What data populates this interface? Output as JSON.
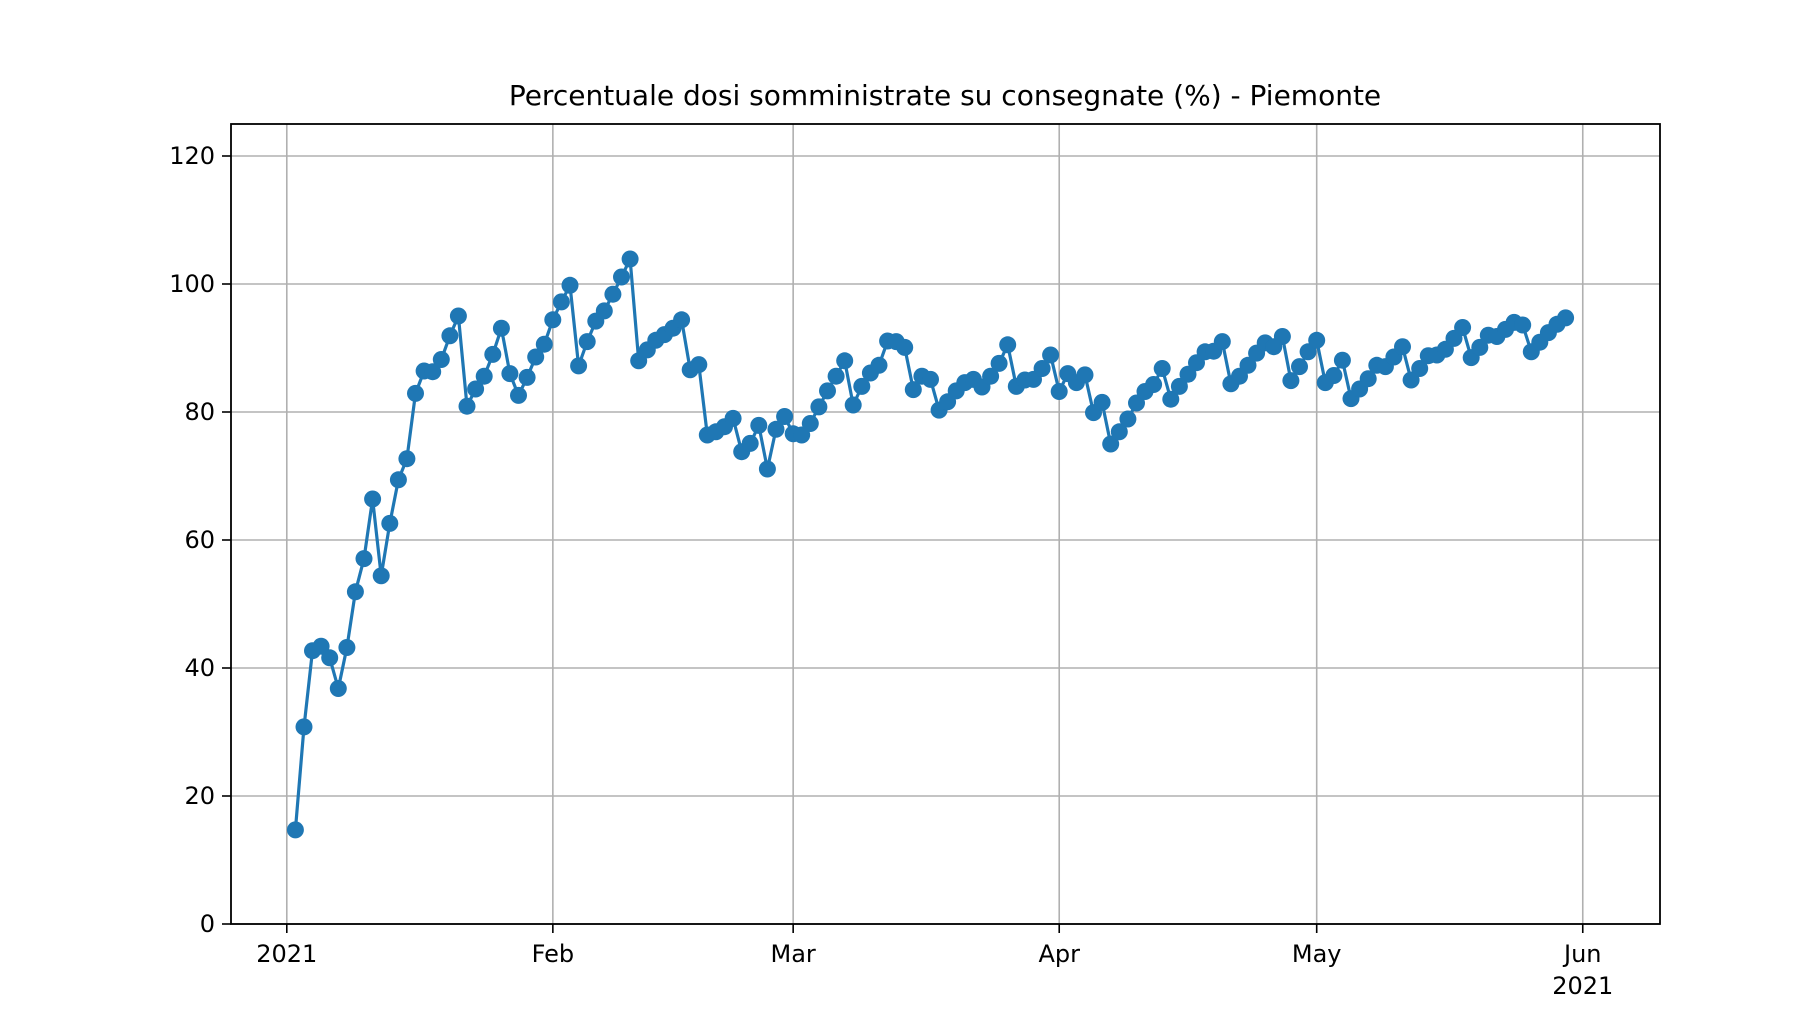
{
  "chart_data": {
    "type": "line",
    "title": "Percentuale dosi somministrate su consegnate (%) - Piemonte",
    "xlabel": "",
    "ylabel": "",
    "ylim": [
      0,
      125
    ],
    "yticks": [
      0,
      20,
      40,
      60,
      80,
      100,
      120
    ],
    "x_range_days": [
      -6.5,
      160
    ],
    "xticks": [
      {
        "day": 0,
        "label": "2021"
      },
      {
        "day": 31,
        "label": "Feb"
      },
      {
        "day": 59,
        "label": "Mar"
      },
      {
        "day": 90,
        "label": "Apr"
      },
      {
        "day": 120,
        "label": "May"
      },
      {
        "day": 151,
        "label": "Jun",
        "sublabel": "2021"
      }
    ],
    "grid": true,
    "series_color": "#1f77b4",
    "series": [
      {
        "name": "Piemonte",
        "start_date": "2021-01-01",
        "values": [
          14.7,
          30.8,
          42.7,
          43.4,
          41.6,
          36.8,
          43.2,
          51.9,
          57.1,
          66.4,
          54.4,
          62.6,
          69.4,
          72.7,
          82.9,
          86.4,
          86.3,
          88.2,
          91.9,
          95.0,
          80.9,
          83.6,
          85.6,
          89.0,
          93.1,
          86.0,
          82.6,
          85.4,
          88.6,
          90.6,
          94.4,
          97.2,
          99.8,
          87.2,
          91.0,
          94.2,
          95.8,
          98.4,
          101.1,
          103.9,
          88.0,
          89.7,
          91.2,
          92.1,
          93.1,
          94.4,
          86.6,
          87.4,
          76.4,
          76.9,
          77.7,
          79.0,
          73.8,
          75.1,
          77.9,
          71.1,
          77.3,
          79.3,
          76.6,
          76.4,
          78.2,
          80.8,
          83.3,
          85.6,
          88.0,
          81.1,
          84.0,
          86.1,
          87.3,
          91.1,
          91.0,
          90.1,
          83.5,
          85.6,
          85.1,
          80.3,
          81.6,
          83.3,
          84.6,
          85.1,
          83.9,
          85.6,
          87.6,
          90.5,
          84.0,
          85.0,
          85.1,
          86.8,
          88.9,
          83.2,
          86.0,
          84.6,
          85.8,
          79.9,
          81.5,
          75.0,
          76.9,
          78.9,
          81.4,
          83.2,
          84.3,
          86.8,
          82.0,
          84.0,
          85.9,
          87.7,
          89.4,
          89.5,
          91.0,
          84.4,
          85.6,
          87.3,
          89.2,
          90.8,
          90.2,
          91.8,
          84.9,
          87.1,
          89.4,
          91.2,
          84.6,
          85.7,
          88.1,
          82.1,
          83.6,
          85.2,
          87.3,
          87.1,
          88.6,
          90.2,
          85.0,
          86.8,
          88.8,
          88.9,
          89.8,
          91.5,
          93.2,
          88.5,
          90.1,
          92.0,
          91.8,
          92.9,
          94.0,
          93.6,
          89.4,
          90.9,
          92.4,
          93.7,
          94.7
        ]
      }
    ]
  }
}
